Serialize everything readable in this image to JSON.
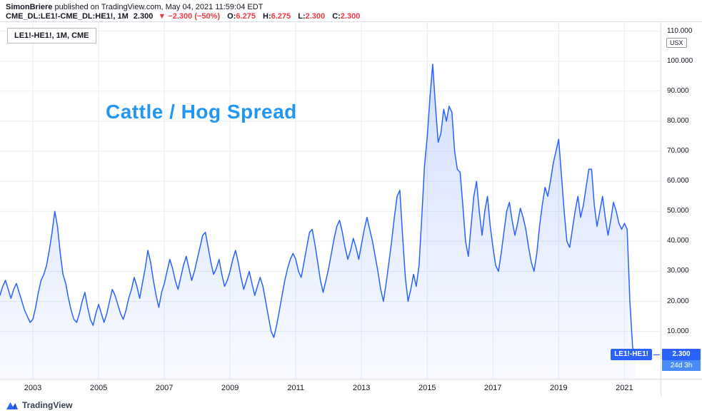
{
  "header": {
    "author": "SimonBriere",
    "published": "published on TradingView.com, May 04, 2021 11:59:04 EDT",
    "symbol": "CME_DL:LE1!-CME_DL:HE1!, 1M",
    "price": "2.300",
    "change": "▼ −2.300 (−50%)",
    "open_label": "O:",
    "open_value": "6.275",
    "high_label": "H:",
    "high_value": "6.275",
    "low_label": "L:",
    "low_value": "2.300",
    "close_label": "C:",
    "close_value": "2.300"
  },
  "legend": {
    "text": "LE1!-HE1!, 1M, CME"
  },
  "watermark": "Cattle / Hog Spread",
  "price_axis": {
    "unit": "USX",
    "last_price": "2.300",
    "countdown": "24d 3h"
  },
  "series_label": "LE1!-HE1!",
  "footer": {
    "brand": "TradingView"
  },
  "colors": {
    "line": "#2962FF",
    "grid": "#E9EDF4",
    "watermark": "#2196F3",
    "down": "#F23645",
    "pill": "#2962FF",
    "countdown_pill": "#4A8CF7"
  },
  "chart_data": {
    "type": "area",
    "title": "Cattle / Hog Spread",
    "series_name": "LE1!-HE1!",
    "timeframe": "1M",
    "unit": "USX",
    "start_year": 2002,
    "points_per_year": 12,
    "xlim": [
      2002,
      2022.1
    ],
    "ylim": [
      -6,
      113
    ],
    "x_ticks": [
      2003,
      2005,
      2007,
      2009,
      2011,
      2013,
      2015,
      2017,
      2019,
      2021
    ],
    "y_ticks": [
      10,
      20,
      30,
      40,
      50,
      60,
      70,
      80,
      90,
      100,
      110
    ],
    "last_value": 2.3,
    "values": [
      22,
      25,
      27,
      24,
      21,
      24,
      26,
      23,
      20,
      17,
      15,
      13,
      14,
      18,
      23,
      27,
      29,
      32,
      37,
      43,
      50,
      45,
      36,
      29,
      26,
      21,
      17,
      14,
      13,
      16,
      20,
      23,
      18,
      14,
      12,
      16,
      19,
      16,
      13,
      16,
      20,
      24,
      22,
      19,
      16,
      14,
      17,
      21,
      24,
      28,
      25,
      21,
      26,
      31,
      37,
      33,
      27,
      22,
      18,
      23,
      26,
      30,
      34,
      31,
      27,
      24,
      28,
      32,
      35,
      31,
      27,
      30,
      34,
      38,
      42,
      43,
      38,
      33,
      29,
      31,
      34,
      29,
      25,
      27,
      30,
      34,
      37,
      33,
      28,
      24,
      27,
      30,
      26,
      22,
      25,
      28,
      25,
      20,
      15,
      10,
      8,
      12,
      17,
      22,
      27,
      31,
      34,
      36,
      34,
      30,
      28,
      33,
      38,
      43,
      44,
      39,
      33,
      27,
      23,
      27,
      31,
      36,
      41,
      45,
      47,
      43,
      38,
      34,
      37,
      41,
      38,
      34,
      39,
      44,
      48,
      44,
      40,
      35,
      30,
      24,
      20,
      26,
      33,
      40,
      48,
      55,
      57,
      42,
      28,
      20,
      24,
      29,
      25,
      32,
      48,
      65,
      75,
      88,
      99,
      85,
      73,
      76,
      84,
      80,
      85,
      83,
      70,
      64,
      63,
      52,
      40,
      35,
      45,
      55,
      60,
      50,
      42,
      50,
      55,
      45,
      38,
      32,
      30,
      36,
      43,
      50,
      53,
      47,
      42,
      46,
      51,
      48,
      44,
      38,
      33,
      30,
      36,
      45,
      52,
      58,
      55,
      60,
      66,
      70,
      74,
      62,
      50,
      40,
      38,
      44,
      50,
      55,
      48,
      52,
      58,
      64,
      64,
      52,
      45,
      50,
      55,
      48,
      42,
      47,
      53,
      50,
      46,
      44,
      46,
      44,
      20,
      4.6,
      2.3
    ]
  }
}
